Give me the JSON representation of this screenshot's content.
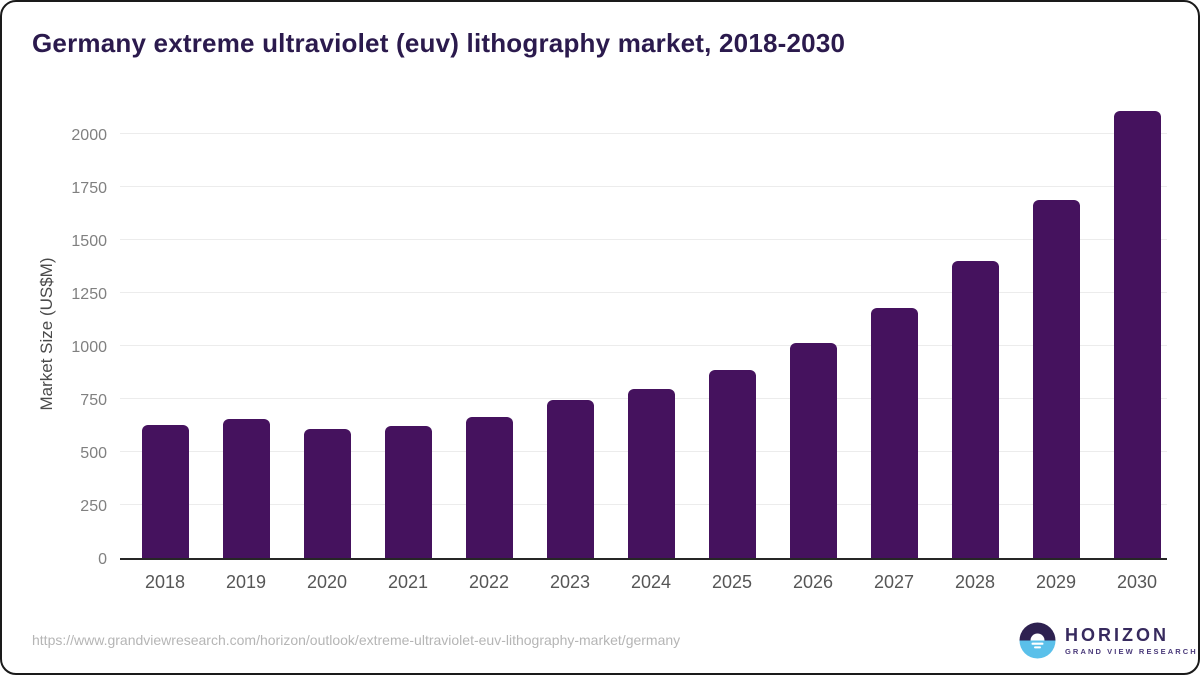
{
  "title": "Germany extreme ultraviolet (euv) lithography market, 2018-2030",
  "chart_data": {
    "type": "bar",
    "title": "Germany extreme ultraviolet (euv) lithography market, 2018-2030",
    "categories": [
      "2018",
      "2019",
      "2020",
      "2021",
      "2022",
      "2023",
      "2024",
      "2025",
      "2026",
      "2027",
      "2028",
      "2029",
      "2030"
    ],
    "values": [
      625,
      655,
      610,
      620,
      665,
      745,
      795,
      885,
      1015,
      1180,
      1400,
      1685,
      2105
    ],
    "xlabel": "",
    "ylabel": "Market Size (US$M)",
    "yticks": [
      0,
      250,
      500,
      750,
      1000,
      1250,
      1500,
      1750,
      2000
    ],
    "ylim": [
      0,
      2135
    ],
    "grid": true,
    "legend": "none",
    "bar_color": "#45125e"
  },
  "footer": {
    "source_url": "https://www.grandviewresearch.com/horizon/outlook/extreme-ultraviolet-euv-lithography-market/germany",
    "logo": {
      "name": "HORIZON",
      "subtitle": "GRAND VIEW RESEARCH"
    }
  },
  "colors": {
    "title_text": "#2b1a4d",
    "bar": "#45125e",
    "axis_line": "#262626",
    "gridline": "#ececec",
    "y_tick_label": "#808080",
    "x_tick_label": "#565656",
    "axis_title": "#4a4a4a",
    "url_text": "#b5b5b5",
    "logo_dark_half": "#2e2150",
    "logo_blue_half": "#5ac0ea",
    "logo_text": "#372a5e",
    "card_border": "#1a1a1a"
  }
}
